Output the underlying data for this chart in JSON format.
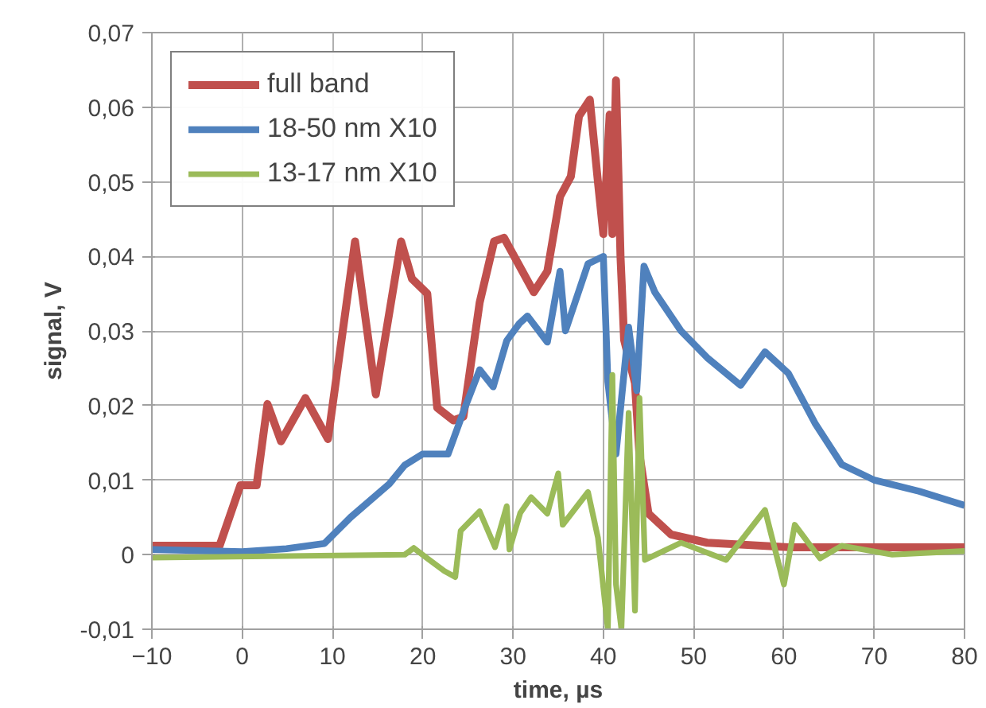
{
  "chart_data": {
    "type": "line",
    "xlabel": "time, µs",
    "ylabel": "signal, V",
    "xlim": [
      -10,
      80
    ],
    "xticks": [
      -10,
      0,
      10,
      20,
      30,
      40,
      50,
      60,
      70,
      80
    ],
    "ylim": [
      -0.01,
      0.07
    ],
    "yticks": [
      {
        "value": -0.01,
        "label": "-0,01"
      },
      {
        "value": 0,
        "label": "0"
      },
      {
        "value": 0.01,
        "label": "0,01"
      },
      {
        "value": 0.02,
        "label": "0,02"
      },
      {
        "value": 0.03,
        "label": "0,03"
      },
      {
        "value": 0.04,
        "label": "0,04"
      },
      {
        "value": 0.05,
        "label": "0,05"
      },
      {
        "value": 0.06,
        "label": "0,06"
      },
      {
        "value": 0.07,
        "label": "0,07"
      }
    ],
    "grid": true,
    "legend": "top left",
    "marker": "none",
    "line_style": "solid",
    "series": [
      {
        "name": "full band",
        "color": "#c0504d",
        "x": [
          -10,
          -2.5,
          -0.2,
          1.6,
          2.8,
          4.3,
          7,
          9.5,
          12.5,
          14.8,
          17.6,
          18.8,
          20.5,
          21.6,
          23.4,
          24.5,
          26.3,
          27.9,
          29,
          32.3,
          33.8,
          35.2,
          36.4,
          37.3,
          38.5,
          39.4,
          40,
          40.7,
          41,
          41.4,
          41.9,
          42.3,
          43.5,
          44,
          45,
          47.5,
          51.5,
          60.5,
          80
        ],
        "values": [
          0.0012,
          0.0012,
          0.0093,
          0.0093,
          0.0202,
          0.0152,
          0.021,
          0.0155,
          0.042,
          0.0215,
          0.042,
          0.037,
          0.035,
          0.0197,
          0.018,
          0.0185,
          0.0338,
          0.042,
          0.0425,
          0.0352,
          0.038,
          0.048,
          0.0507,
          0.0588,
          0.061,
          0.05,
          0.043,
          0.059,
          0.043,
          0.0636,
          0.04,
          0.0288,
          0.023,
          0.0134,
          0.0055,
          0.0027,
          0.0016,
          0.001,
          0.001
        ]
      },
      {
        "name": "18-50 nm X10",
        "color": "#4f81bd",
        "x": [
          -10,
          0,
          4.9,
          9.1,
          12,
          16.3,
          18,
          20,
          22.8,
          24.6,
          26.3,
          27.8,
          29.3,
          30.7,
          31.6,
          33.8,
          35.2,
          35.8,
          38.3,
          40,
          40.5,
          41.4,
          42.8,
          43.7,
          44.5,
          45.7,
          48.6,
          51.6,
          55.2,
          57.9,
          60.5,
          63.5,
          66.4,
          70,
          75,
          80
        ],
        "values": [
          0.0007,
          0.0004,
          0.0008,
          0.0015,
          0.005,
          0.0095,
          0.012,
          0.0135,
          0.0135,
          0.0195,
          0.0248,
          0.0225,
          0.0287,
          0.031,
          0.032,
          0.0285,
          0.038,
          0.03,
          0.039,
          0.04,
          0.0232,
          0.0135,
          0.0305,
          0.022,
          0.0387,
          0.0352,
          0.03,
          0.0263,
          0.0227,
          0.0272,
          0.0243,
          0.0175,
          0.0121,
          0.01,
          0.0085,
          0.0066
        ]
      },
      {
        "name": "13-17 nm X10",
        "color": "#9bbb59",
        "x": [
          -10,
          18,
          19,
          20.5,
          22.4,
          23.6,
          24.2,
          26.3,
          28,
          29.3,
          29.6,
          30.8,
          32,
          33.8,
          35,
          35.5,
          38.3,
          39.4,
          40.5,
          41,
          41.4,
          42,
          42.8,
          43.5,
          44,
          44.6,
          48.6,
          53.6,
          57.9,
          60,
          61.2,
          64,
          66.4,
          72,
          80
        ],
        "values": [
          -0.0004,
          0,
          0.0009,
          -0.0005,
          -0.0022,
          -0.003,
          0.0032,
          0.0058,
          0.001,
          0.0065,
          0.0007,
          0.0056,
          0.0077,
          0.0055,
          0.0109,
          0.004,
          0.0084,
          0.0023,
          -0.01,
          0.0241,
          -0.004,
          -0.01,
          0.019,
          -0.0075,
          0.021,
          -0.0007,
          0.0016,
          -0.0007,
          0.006,
          -0.004,
          0.004,
          -0.0005,
          0.0012,
          0,
          0.0005
        ]
      }
    ]
  }
}
